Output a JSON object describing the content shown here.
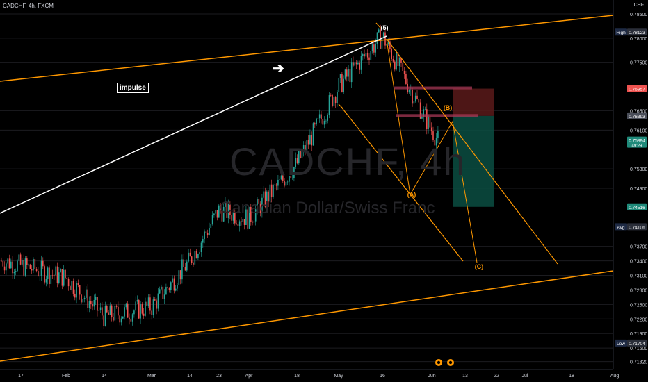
{
  "header": {
    "symbol": "CADCHF, 4h, FXCM",
    "currency": "CHF"
  },
  "watermark": {
    "main": "CADCHF, 4h",
    "sub": "Canadian Dollar/Swiss Franc"
  },
  "annotations": {
    "impulse": "impulse",
    "arrow": "➔"
  },
  "colors": {
    "background": "#000000",
    "orange": "#ff9800",
    "green": "#26a69a",
    "red": "#ef5350",
    "bull_candle": "#26a69a",
    "bear_candle": "#ef5350"
  },
  "chart_data": {
    "type": "candlestick",
    "price_axis": {
      "ticks": [
        "0.78500",
        "0.78000",
        "0.77500",
        "0.76500",
        "0.76100",
        "0.75300",
        "0.74900",
        "0.73700",
        "0.73400",
        "0.73100",
        "0.72800",
        "0.72500",
        "0.72200",
        "0.71900",
        "0.71600",
        "0.71320"
      ],
      "ylim": [
        0.711,
        0.787
      ]
    },
    "time_axis": {
      "ticks": [
        "17",
        "Feb",
        "14",
        "Mar",
        "14",
        "23",
        "Apr",
        "18",
        "May",
        "16",
        "Jun",
        "13",
        "22",
        "Jul",
        "18",
        "Aug"
      ]
    },
    "price_labels": [
      {
        "label": "High",
        "value": "0.78123",
        "kind": "high"
      },
      {
        "value": "0.76957",
        "kind": "red"
      },
      {
        "value": "0.76393",
        "kind": "gray"
      },
      {
        "value": "0.75894",
        "sub": "49:29",
        "kind": "green"
      },
      {
        "value": "0.74516",
        "kind": "green"
      },
      {
        "label": "Avg",
        "value": "0.74106",
        "kind": "avg"
      },
      {
        "label": "Low",
        "value": "0.71704",
        "kind": "low"
      }
    ],
    "wave_labels": [
      "(5)",
      "(B)",
      "(A)",
      "(C)"
    ],
    "close_path": [
      [
        "17",
        0.734
      ],
      [
        "Feb",
        0.7305
      ],
      [
        "14",
        0.7225
      ],
      [
        "Mar",
        0.7245
      ],
      [
        "14",
        0.734
      ],
      [
        "23",
        0.7445
      ],
      [
        "Apr",
        0.7428
      ],
      [
        "18",
        0.754
      ],
      [
        "May",
        0.77
      ],
      [
        "16",
        0.7805
      ],
      [
        "Jun",
        0.761
      ],
      [
        "now",
        0.7589
      ]
    ],
    "trade": {
      "entry": "0.76393",
      "stop": "0.76957",
      "target": "0.74516"
    },
    "events": [
      "earnings-marker",
      "event-marker"
    ]
  }
}
